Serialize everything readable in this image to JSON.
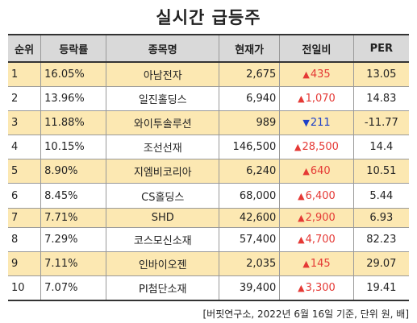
{
  "title": "실시간 급등주",
  "headers": {
    "rank": "순위",
    "rate": "등락률",
    "name": "종목명",
    "price": "현재가",
    "change": "전일비",
    "per": "PER"
  },
  "rows": [
    {
      "rank": "1",
      "rate": "16.05%",
      "name": "아남전자",
      "price": "2,675",
      "arrow": "▲",
      "change": "435",
      "direction": "up",
      "per": "13.05"
    },
    {
      "rank": "2",
      "rate": "13.96%",
      "name": "일진홀딩스",
      "price": "6,940",
      "arrow": "▲",
      "change": "1,070",
      "direction": "up",
      "per": "14.83"
    },
    {
      "rank": "3",
      "rate": "11.88%",
      "name": "와이투솔루션",
      "price": "989",
      "arrow": "▼",
      "change": "211",
      "direction": "down",
      "per": "-11.77"
    },
    {
      "rank": "4",
      "rate": "10.15%",
      "name": "조선선재",
      "price": "146,500",
      "arrow": "▲",
      "change": "28,500",
      "direction": "up",
      "per": "14.4"
    },
    {
      "rank": "5",
      "rate": "8.90%",
      "name": "지엠비코리아",
      "price": "6,240",
      "arrow": "▲",
      "change": "640",
      "direction": "up",
      "per": "10.51"
    },
    {
      "rank": "6",
      "rate": "8.45%",
      "name": "CS홀딩스",
      "price": "68,000",
      "arrow": "▲",
      "change": "6,400",
      "direction": "up",
      "per": "5.44"
    },
    {
      "rank": "7",
      "rate": "7.71%",
      "name": "SHD",
      "price": "42,600",
      "arrow": "▲",
      "change": "2,900",
      "direction": "up",
      "per": "6.93"
    },
    {
      "rank": "8",
      "rate": "7.29%",
      "name": "코스모신소재",
      "price": "57,400",
      "arrow": "▲",
      "change": "4,700",
      "direction": "up",
      "per": "82.23"
    },
    {
      "rank": "9",
      "rate": "7.11%",
      "name": "인바이오젠",
      "price": "2,035",
      "arrow": "▲",
      "change": "145",
      "direction": "up",
      "per": "29.07"
    },
    {
      "rank": "10",
      "rate": "7.07%",
      "name": "PI첨단소재",
      "price": "39,400",
      "arrow": "▲",
      "change": "3,300",
      "direction": "up",
      "per": "19.41"
    }
  ],
  "source": "[버핏연구소, 2022년 6월 16일 기준, 단위 원, 배]",
  "colors": {
    "header_bg": "#d9d9d9",
    "odd_row_bg": "#fce8b2",
    "up": "#e53935",
    "down": "#1e40c8"
  }
}
